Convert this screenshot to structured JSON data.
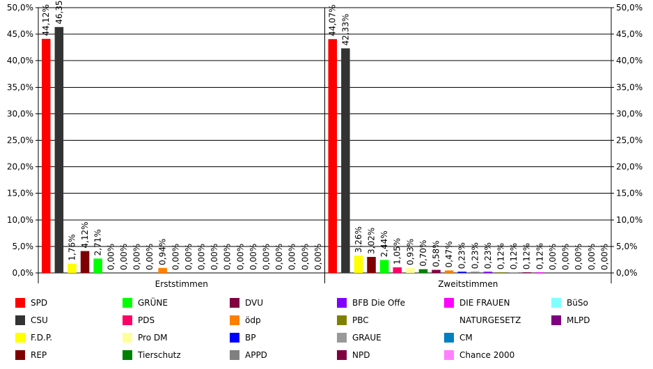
{
  "chart_data": {
    "type": "bar",
    "ylim": [
      0,
      50
    ],
    "yticks": [
      "0,0%",
      "5,0%",
      "10,0%",
      "15,0%",
      "20,0%",
      "25,0%",
      "30,0%",
      "35,0%",
      "40,0%",
      "45,0%",
      "50,0%"
    ],
    "grid": true,
    "legend_position": "bottom",
    "groups": [
      {
        "name": "Erststimmen",
        "bars": [
          {
            "party": "SPD",
            "value": 44.12,
            "label": "44,12%"
          },
          {
            "party": "CSU",
            "value": 46.35,
            "label": "46,35%"
          },
          {
            "party": "F.D.P.",
            "value": 1.76,
            "label": "1,76%"
          },
          {
            "party": "REP",
            "value": 4.12,
            "label": "4,12%"
          },
          {
            "party": "GRÜNE",
            "value": 2.71,
            "label": "2,71%"
          },
          {
            "party": "PDS",
            "value": 0,
            "label": "0,00%"
          },
          {
            "party": "Pro DM",
            "value": 0,
            "label": "0,00%"
          },
          {
            "party": "Tierschutz",
            "value": 0,
            "label": "0,00%"
          },
          {
            "party": "DVU",
            "value": 0,
            "label": "0,00%"
          },
          {
            "party": "ödp",
            "value": 0.94,
            "label": "0,94%"
          },
          {
            "party": "BP",
            "value": 0,
            "label": "0,00%"
          },
          {
            "party": "APPD",
            "value": 0,
            "label": "0,00%"
          },
          {
            "party": "BFB Die Offe",
            "value": 0,
            "label": "0,00%"
          },
          {
            "party": "PBC",
            "value": 0,
            "label": "0,00%"
          },
          {
            "party": "GRAUE",
            "value": 0,
            "label": "0,00%"
          },
          {
            "party": "NPD",
            "value": 0,
            "label": "0,00%"
          },
          {
            "party": "DIE FRAUEN",
            "value": 0,
            "label": "0,00%"
          },
          {
            "party": "NATURGESETZ",
            "value": 0,
            "label": "0,00%"
          },
          {
            "party": "CM",
            "value": 0,
            "label": "0,00%"
          },
          {
            "party": "Chance 2000",
            "value": 0,
            "label": "0,00%"
          },
          {
            "party": "BüSo",
            "value": 0,
            "label": "0,00%"
          },
          {
            "party": "MLPD",
            "value": 0,
            "label": "0,00%"
          }
        ]
      },
      {
        "name": "Zweitstimmen",
        "bars": [
          {
            "party": "SPD",
            "value": 44.07,
            "label": "44,07%"
          },
          {
            "party": "CSU",
            "value": 42.33,
            "label": "42,33%"
          },
          {
            "party": "F.D.P.",
            "value": 3.26,
            "label": "3,26%"
          },
          {
            "party": "REP",
            "value": 3.02,
            "label": "3,02%"
          },
          {
            "party": "GRÜNE",
            "value": 2.44,
            "label": "2,44%"
          },
          {
            "party": "PDS",
            "value": 1.05,
            "label": "1,05%"
          },
          {
            "party": "Pro DM",
            "value": 0.93,
            "label": "0,93%"
          },
          {
            "party": "Tierschutz",
            "value": 0.7,
            "label": "0,70%"
          },
          {
            "party": "DVU",
            "value": 0.58,
            "label": "0,58%"
          },
          {
            "party": "ödp",
            "value": 0.47,
            "label": "0,47%"
          },
          {
            "party": "BP",
            "value": 0.23,
            "label": "0,23%"
          },
          {
            "party": "APPD",
            "value": 0.23,
            "label": "0,23%"
          },
          {
            "party": "BFB Die Offe",
            "value": 0.23,
            "label": "0,23%"
          },
          {
            "party": "PBC",
            "value": 0.12,
            "label": "0,12%"
          },
          {
            "party": "GRAUE",
            "value": 0.12,
            "label": "0,12%"
          },
          {
            "party": "NPD",
            "value": 0.12,
            "label": "0,12%"
          },
          {
            "party": "DIE FRAUEN",
            "value": 0.12,
            "label": "0,12%"
          },
          {
            "party": "NATURGESETZ",
            "value": 0,
            "label": "0,00%"
          },
          {
            "party": "CM",
            "value": 0,
            "label": "0,00%"
          },
          {
            "party": "Chance 2000",
            "value": 0,
            "label": "0,00%"
          },
          {
            "party": "BüSo",
            "value": 0,
            "label": "0,00%"
          },
          {
            "party": "MLPD",
            "value": 0,
            "label": "0,00%"
          }
        ]
      }
    ],
    "legend": [
      {
        "name": "SPD",
        "color": "#ff0000"
      },
      {
        "name": "CSU",
        "color": "#333333"
      },
      {
        "name": "F.D.P.",
        "color": "#ffff00"
      },
      {
        "name": "REP",
        "color": "#800000"
      },
      {
        "name": "GRÜNE",
        "color": "#00ff00"
      },
      {
        "name": "PDS",
        "color": "#ff0066"
      },
      {
        "name": "Pro DM",
        "color": "#ffff99"
      },
      {
        "name": "Tierschutz",
        "color": "#008000"
      },
      {
        "name": "DVU",
        "color": "#800040"
      },
      {
        "name": "ödp",
        "color": "#ff8000"
      },
      {
        "name": "BP",
        "color": "#0000ff"
      },
      {
        "name": "APPD",
        "color": "#808080"
      },
      {
        "name": "BFB Die Offe",
        "color": "#8000ff"
      },
      {
        "name": "PBC",
        "color": "#808000"
      },
      {
        "name": "GRAUE",
        "color": "#999999"
      },
      {
        "name": "NPD",
        "color": "#800040"
      },
      {
        "name": "DIE FRAUEN",
        "color": "#ff00ff"
      },
      {
        "name": "NATURGESETZ",
        "color": "#ffffff"
      },
      {
        "name": "CM",
        "color": "#0080c0"
      },
      {
        "name": "Chance 2000",
        "color": "#ff80ff"
      },
      {
        "name": "BüSo",
        "color": "#80ffff"
      },
      {
        "name": "MLPD",
        "color": "#800080"
      }
    ]
  }
}
